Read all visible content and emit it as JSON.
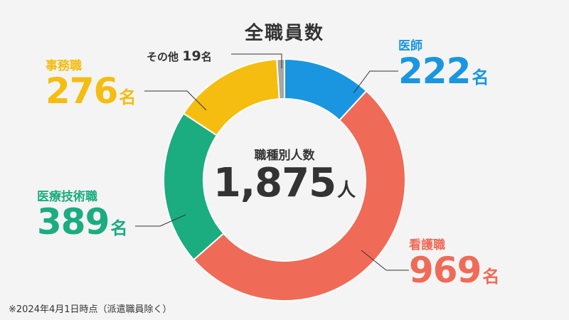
{
  "chart_data": {
    "type": "pie",
    "title": "全職員数",
    "center": {
      "label": "職種別人数",
      "value": "1,875",
      "unit": "人"
    },
    "unit": "名",
    "slices": [
      {
        "name": "医師",
        "value": 222,
        "color": "#1a96e0"
      },
      {
        "name": "看護職",
        "value": 969,
        "color": "#ef6b57"
      },
      {
        "name": "医療技術職",
        "value": 389,
        "color": "#1bac80"
      },
      {
        "name": "事務職",
        "value": 276,
        "color": "#f4bd10"
      },
      {
        "name": "その他",
        "value": 19,
        "color": "#a6a6a6"
      }
    ],
    "total": 1875
  },
  "footnote": "※2024年4月1日時点（派遣職員除く）"
}
